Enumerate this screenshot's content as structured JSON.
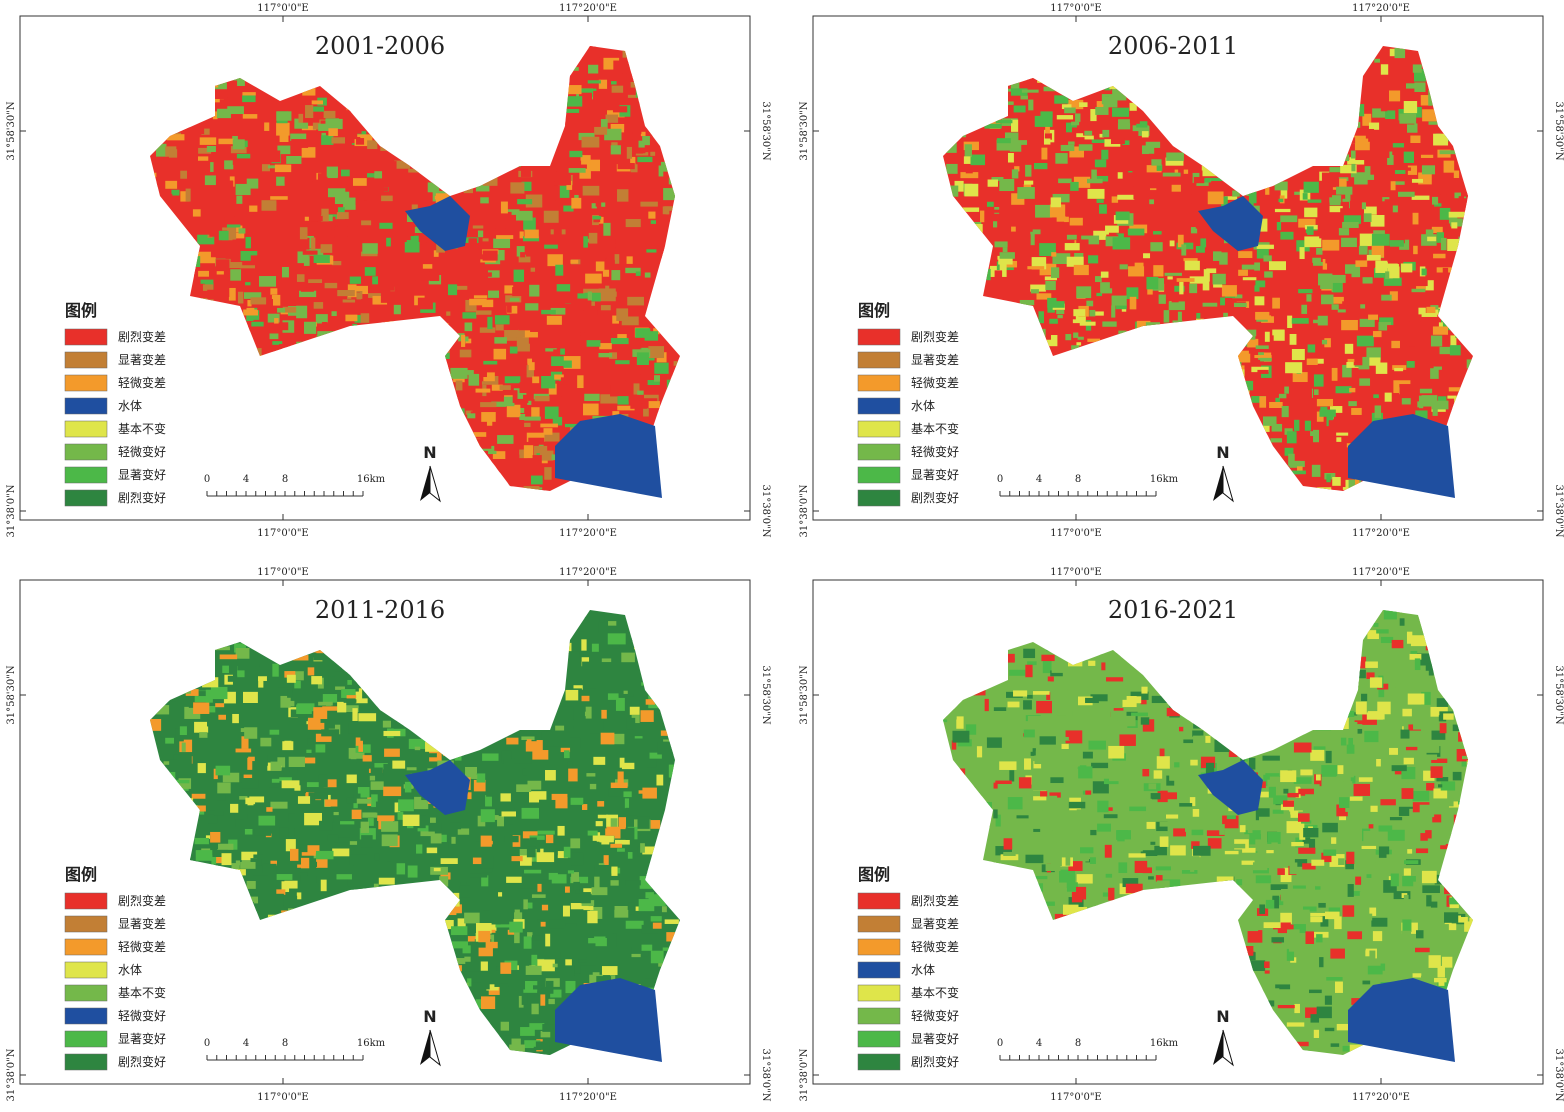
{
  "panels": [
    {
      "title": "2001-2006",
      "legend": {
        "title": "图例",
        "items": [
          {
            "label": "剧烈变差",
            "color": "#e8302a"
          },
          {
            "label": "显著变差",
            "color": "#c27f35"
          },
          {
            "label": "轻微变差",
            "color": "#f39a2b"
          },
          {
            "label": "水体",
            "color": "#1f4fa0"
          },
          {
            "label": "基本不变",
            "color": "#dfe54a"
          },
          {
            "label": "轻微变好",
            "color": "#74b84a"
          },
          {
            "label": "显著变好",
            "color": "#4cb848"
          },
          {
            "label": "剧烈变好",
            "color": "#2e8540"
          }
        ]
      }
    },
    {
      "title": "2006-2011",
      "legend": {
        "title": "图例",
        "items": [
          {
            "label": "剧烈变差",
            "color": "#e8302a"
          },
          {
            "label": "显著变差",
            "color": "#c27f35"
          },
          {
            "label": "轻微变差",
            "color": "#f39a2b"
          },
          {
            "label": "水体",
            "color": "#1f4fa0"
          },
          {
            "label": "基本不变",
            "color": "#dfe54a"
          },
          {
            "label": "轻微变好",
            "color": "#74b84a"
          },
          {
            "label": "显著变好",
            "color": "#4cb848"
          },
          {
            "label": "剧烈变好",
            "color": "#2e8540"
          }
        ]
      }
    },
    {
      "title": "2011-2016",
      "legend": {
        "title": "图例",
        "items": [
          {
            "label": "剧烈变差",
            "color": "#e8302a"
          },
          {
            "label": "显著变差",
            "color": "#c27f35"
          },
          {
            "label": "轻微变差",
            "color": "#f39a2b"
          },
          {
            "label": "水体",
            "color": "#dfe54a"
          },
          {
            "label": "基本不变",
            "color": "#74b84a"
          },
          {
            "label": "轻微变好",
            "color": "#1f4fa0"
          },
          {
            "label": "显著变好",
            "color": "#4cb848"
          },
          {
            "label": "剧烈变好",
            "color": "#2e8540"
          }
        ]
      }
    },
    {
      "title": "2016-2021",
      "legend": {
        "title": "图例",
        "items": [
          {
            "label": "剧烈变差",
            "color": "#e8302a"
          },
          {
            "label": "显著变差",
            "color": "#c27f35"
          },
          {
            "label": "轻微变差",
            "color": "#f39a2b"
          },
          {
            "label": "水体",
            "color": "#1f4fa0"
          },
          {
            "label": "基本不变",
            "color": "#dfe54a"
          },
          {
            "label": "轻微变好",
            "color": "#74b84a"
          },
          {
            "label": "显著变好",
            "color": "#4cb848"
          },
          {
            "label": "剧烈变好",
            "color": "#2e8540"
          }
        ]
      }
    }
  ],
  "coordinates": {
    "lon": [
      "117°0'0\"E",
      "117°20'0\"E"
    ],
    "lat": [
      "31°58'30\"N",
      "31°38'0\"N"
    ]
  },
  "scale_bar": [
    "0",
    "4",
    "8",
    "16km"
  ],
  "north": "N"
}
